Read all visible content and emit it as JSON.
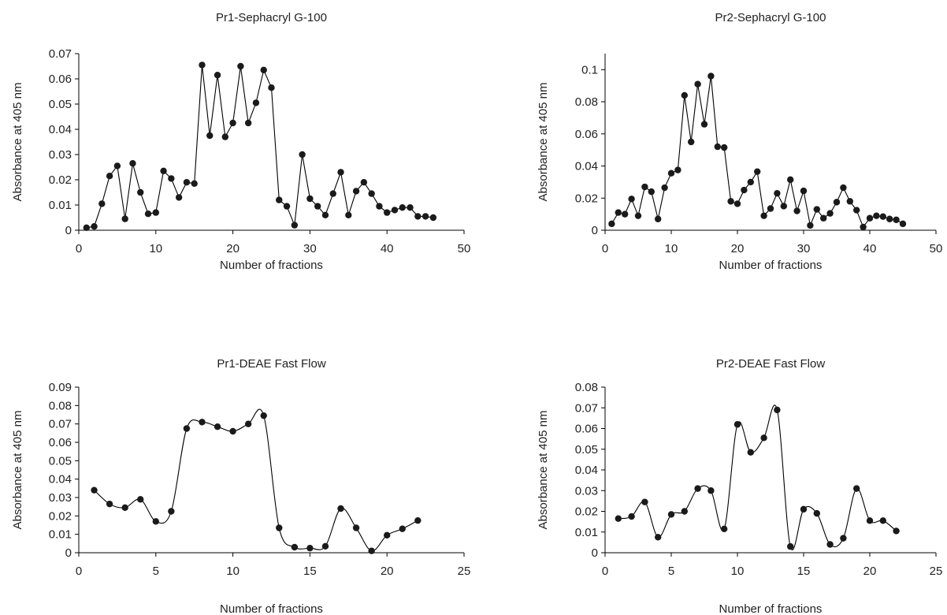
{
  "chart_data": [
    {
      "type": "line",
      "title": "Pr1-Sephacryl G-100",
      "xlabel": "Number of fractions",
      "ylabel": "Absorbance at 405 nm",
      "xlim": [
        0,
        50
      ],
      "ylim": [
        0,
        0.07
      ],
      "xticks": [
        "0",
        "10",
        "20",
        "30",
        "40",
        "50"
      ],
      "yticks": [
        "0",
        "0.01",
        "0.02",
        "0.03",
        "0.04",
        "0.05",
        "0.06",
        "0.07"
      ],
      "smooth": false,
      "x": [
        1,
        2,
        3,
        4,
        5,
        6,
        7,
        8,
        9,
        10,
        11,
        12,
        13,
        14,
        15,
        16,
        17,
        18,
        19,
        20,
        21,
        22,
        23,
        24,
        25,
        26,
        27,
        28,
        29,
        30,
        31,
        32,
        33,
        34,
        35,
        36,
        37,
        38,
        39,
        40,
        41,
        42,
        43,
        44,
        45,
        46
      ],
      "series": [
        {
          "values": [
            0.001,
            0.0015,
            0.0105,
            0.0215,
            0.0255,
            0.0045,
            0.0265,
            0.015,
            0.0065,
            0.007,
            0.0235,
            0.0205,
            0.013,
            0.019,
            0.0185,
            0.0655,
            0.0375,
            0.0615,
            0.037,
            0.0425,
            0.065,
            0.0425,
            0.0505,
            0.0635,
            0.0565,
            0.012,
            0.0095,
            0.002,
            0.03,
            0.0125,
            0.0095,
            0.006,
            0.0145,
            0.023,
            0.006,
            0.0155,
            0.019,
            0.0145,
            0.0095,
            0.007,
            0.008,
            0.009,
            0.009,
            0.0055,
            0.0055,
            0.005
          ]
        }
      ]
    },
    {
      "type": "line",
      "title": "Pr2-Sephacryl G-100",
      "xlabel": "Number of fractions",
      "ylabel": "Absorbance at 405 nm",
      "xlim": [
        0,
        50
      ],
      "ylim": [
        0,
        0.11
      ],
      "xticks": [
        "0",
        "10",
        "20",
        "30",
        "40",
        "50"
      ],
      "yticks": [
        "0",
        "0.02",
        "0.04",
        "0.06",
        "0.08",
        "0.1"
      ],
      "smooth": false,
      "x": [
        1,
        2,
        3,
        4,
        5,
        6,
        7,
        8,
        9,
        10,
        11,
        12,
        13,
        14,
        15,
        16,
        17,
        18,
        19,
        20,
        21,
        22,
        23,
        24,
        25,
        26,
        27,
        28,
        29,
        30,
        31,
        32,
        33,
        34,
        35,
        36,
        37,
        38,
        39,
        40,
        41,
        42,
        43,
        44,
        45
      ],
      "series": [
        {
          "values": [
            0.004,
            0.011,
            0.01,
            0.0195,
            0.009,
            0.027,
            0.024,
            0.007,
            0.0265,
            0.0355,
            0.0375,
            0.084,
            0.055,
            0.091,
            0.066,
            0.096,
            0.052,
            0.0515,
            0.018,
            0.0165,
            0.025,
            0.03,
            0.0365,
            0.009,
            0.0135,
            0.023,
            0.015,
            0.0315,
            0.012,
            0.0245,
            0.003,
            0.013,
            0.0075,
            0.0105,
            0.0175,
            0.0265,
            0.018,
            0.0125,
            0.002,
            0.0075,
            0.009,
            0.0085,
            0.007,
            0.0065,
            0.004
          ]
        }
      ]
    },
    {
      "type": "line",
      "title": "Pr1-DEAE Fast Flow",
      "xlabel": "Number of fractions",
      "ylabel": "Absorbance at 405 nm",
      "xlim": [
        0,
        25
      ],
      "ylim": [
        0,
        0.09
      ],
      "xticks": [
        "0",
        "5",
        "10",
        "15",
        "20",
        "25"
      ],
      "yticks": [
        "0",
        "0.01",
        "0.02",
        "0.03",
        "0.04",
        "0.05",
        "0.06",
        "0.07",
        "0.08",
        "0.09"
      ],
      "smooth": true,
      "x": [
        1,
        2,
        3,
        4,
        5,
        6,
        7,
        8,
        9,
        10,
        11,
        12,
        13,
        14,
        15,
        16,
        17,
        18,
        19,
        20,
        21,
        22
      ],
      "series": [
        {
          "values": [
            0.034,
            0.0265,
            0.0245,
            0.029,
            0.017,
            0.0225,
            0.0675,
            0.071,
            0.0685,
            0.066,
            0.07,
            0.0745,
            0.0135,
            0.003,
            0.0025,
            0.0035,
            0.024,
            0.0135,
            0.001,
            0.0095,
            0.013,
            0.0175
          ]
        }
      ]
    },
    {
      "type": "line",
      "title": "Pr2-DEAE Fast Flow",
      "xlabel": "Number of fractions",
      "ylabel": "Absorbance at 405 nm",
      "xlim": [
        0,
        25
      ],
      "ylim": [
        0,
        0.08
      ],
      "xticks": [
        "0",
        "5",
        "10",
        "15",
        "20",
        "25"
      ],
      "yticks": [
        "0",
        "0.01",
        "0.02",
        "0.03",
        "0.04",
        "0.05",
        "0.06",
        "0.07",
        "0.08"
      ],
      "smooth": true,
      "x": [
        1,
        2,
        3,
        4,
        5,
        6,
        7,
        8,
        9,
        10,
        11,
        12,
        13,
        14,
        15,
        16,
        17,
        18,
        19,
        20,
        21,
        22
      ],
      "series": [
        {
          "values": [
            0.0165,
            0.0175,
            0.0245,
            0.0075,
            0.0185,
            0.02,
            0.031,
            0.03,
            0.0115,
            0.062,
            0.0485,
            0.0555,
            0.069,
            0.003,
            0.021,
            0.019,
            0.004,
            0.007,
            0.031,
            0.0155,
            0.0155,
            0.0105
          ]
        }
      ]
    }
  ]
}
